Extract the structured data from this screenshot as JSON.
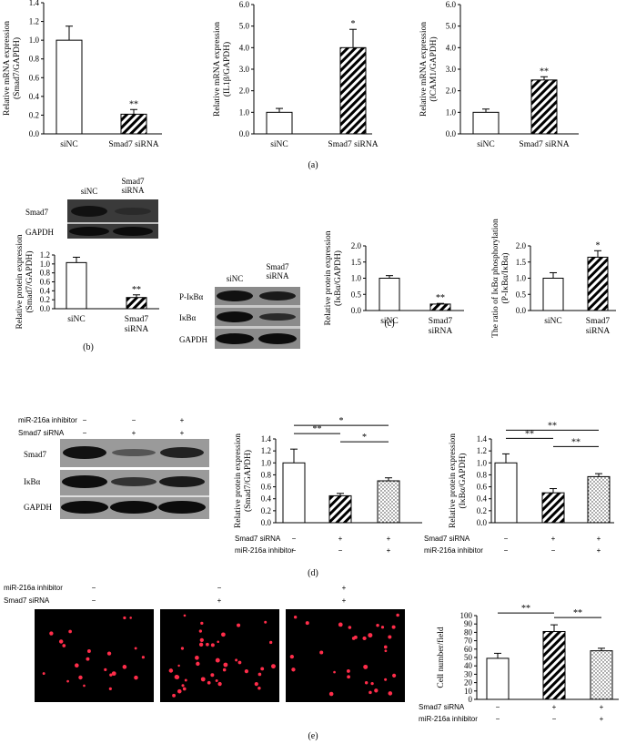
{
  "panel_labels": {
    "a": "(a)",
    "b": "(b)",
    "c": "(c)",
    "d": "(d)",
    "e": "(e)"
  },
  "blots": {
    "b": {
      "lanes": [
        "siNC",
        "Smad7 siRNA"
      ],
      "rows": [
        "Smad7",
        "GAPDH"
      ]
    },
    "c": {
      "lanes": [
        "siNC",
        "Smad7 siRNA"
      ],
      "rows": [
        "P-IκBα",
        "IκBα",
        "GAPDH"
      ]
    },
    "d": {
      "conditions": [
        {
          "label": "miR-216a inhibitor",
          "values": [
            "−",
            "−",
            "+"
          ]
        },
        {
          "label": "Smad7 siRNA",
          "values": [
            "−",
            "+",
            "+"
          ]
        }
      ],
      "rows": [
        "Smad7",
        "IκBα",
        "GAPDH"
      ]
    }
  },
  "micrographs_e": {
    "conditions": [
      {
        "label": "miR-216a inhibitor",
        "values": [
          "−",
          "−",
          "+"
        ]
      },
      {
        "label": "Smad7 siRNA",
        "values": [
          "−",
          "+",
          "+"
        ]
      }
    ]
  },
  "chart_data": [
    {
      "id": "a1",
      "type": "bar",
      "categories": [
        "siNC",
        "Smad7 siRNA"
      ],
      "values": [
        1.0,
        0.21
      ],
      "errors": [
        0.15,
        0.05
      ],
      "ylabel": "Relative mRNA expression (Smad7/GAPDH)",
      "ylim": [
        0,
        1.4
      ],
      "yticks": [
        "0.0",
        "0.2",
        "0.4",
        "0.6",
        "0.8",
        "1.0",
        "1.2",
        "1.4"
      ],
      "patterns": [
        "white",
        "hatch"
      ],
      "significance": [
        "",
        "**"
      ]
    },
    {
      "id": "a2",
      "type": "bar",
      "categories": [
        "siNC",
        "Smad7 siRNA"
      ],
      "values": [
        1.0,
        4.0
      ],
      "errors": [
        0.18,
        0.85
      ],
      "ylabel": "Relative mRNA expression (IL1β/GAPDH)",
      "ylim": [
        0,
        6.0
      ],
      "yticks": [
        "0.0",
        "1.0",
        "2.0",
        "3.0",
        "4.0",
        "5.0",
        "6.0"
      ],
      "patterns": [
        "white",
        "hatch"
      ],
      "significance": [
        "",
        "*"
      ]
    },
    {
      "id": "a3",
      "type": "bar",
      "categories": [
        "siNC",
        "Smad7 siRNA"
      ],
      "values": [
        1.0,
        2.5
      ],
      "errors": [
        0.15,
        0.15
      ],
      "ylabel": "Relative mRNA expression (ICAM1/GAPDH)",
      "ylim": [
        0,
        6.0
      ],
      "yticks": [
        "0.0",
        "1.0",
        "2.0",
        "3.0",
        "4.0",
        "5.0",
        "6.0"
      ],
      "patterns": [
        "white",
        "hatch"
      ],
      "significance": [
        "",
        "**"
      ]
    },
    {
      "id": "b",
      "type": "bar",
      "categories": [
        "siNC",
        "Smad7 siRNA"
      ],
      "values": [
        1.03,
        0.25
      ],
      "errors": [
        0.12,
        0.06
      ],
      "ylabel": "Relative protein expression (Smad7/GAPDH)",
      "ylim": [
        0,
        1.2
      ],
      "yticks": [
        "0.0",
        "0.2",
        "0.4",
        "0.6",
        "0.8",
        "1.0",
        "1.2"
      ],
      "patterns": [
        "white",
        "hatch"
      ],
      "significance": [
        "",
        "**"
      ]
    },
    {
      "id": "c1",
      "type": "bar",
      "categories": [
        "siNC",
        "Smad7 siRNA"
      ],
      "values": [
        1.0,
        0.2
      ],
      "errors": [
        0.08,
        0.02
      ],
      "ylabel": "Relative protein expression (IκBα/GAPDH)",
      "ylim": [
        0,
        2.0
      ],
      "yticks": [
        "0.0",
        "0.5",
        "1.0",
        "1.5",
        "2.0"
      ],
      "patterns": [
        "white",
        "hatch"
      ],
      "significance": [
        "",
        "**"
      ]
    },
    {
      "id": "c2",
      "type": "bar",
      "categories": [
        "siNC",
        "Smad7 siRNA"
      ],
      "values": [
        1.0,
        1.65
      ],
      "errors": [
        0.17,
        0.2
      ],
      "ylabel": "The ratio of IκBα phosphorylation (P-IκBα/IκBα)",
      "ylim": [
        0,
        2.0
      ],
      "yticks": [
        "0.0",
        "0.5",
        "1.0",
        "1.5",
        "2.0"
      ],
      "patterns": [
        "white",
        "hatch"
      ],
      "significance": [
        "",
        "*"
      ]
    },
    {
      "id": "d1",
      "type": "bar",
      "categories": [
        "",
        "",
        ""
      ],
      "values": [
        1.0,
        0.45,
        0.7
      ],
      "errors": [
        0.23,
        0.04,
        0.05
      ],
      "ylabel": "Relative protein expression (Smad7/GAPDH)",
      "ylim": [
        0,
        1.4
      ],
      "yticks": [
        "0.0",
        "0.2",
        "0.4",
        "0.6",
        "0.8",
        "1.0",
        "1.2",
        "1.4"
      ],
      "patterns": [
        "white",
        "hatch",
        "dots"
      ],
      "brackets": [
        {
          "from": 0,
          "to": 1,
          "label": "**"
        },
        {
          "from": 1,
          "to": 2,
          "label": "*"
        },
        {
          "from": 0,
          "to": 2,
          "label": "*"
        }
      ],
      "conditions": [
        {
          "label": "Smad7 siRNA",
          "values": [
            "−",
            "+",
            "+"
          ]
        },
        {
          "label": "miR-216a inhibitor",
          "values": [
            "−",
            "−",
            "+"
          ]
        }
      ]
    },
    {
      "id": "d2",
      "type": "bar",
      "categories": [
        "",
        "",
        ""
      ],
      "values": [
        1.0,
        0.5,
        0.77
      ],
      "errors": [
        0.15,
        0.07,
        0.05
      ],
      "ylabel": "Relative protein expression (IκBα/GAPDH)",
      "ylim": [
        0,
        1.4
      ],
      "yticks": [
        "0.0",
        "0.2",
        "0.4",
        "0.6",
        "0.8",
        "1.0",
        "1.2",
        "1.4"
      ],
      "patterns": [
        "white",
        "hatch",
        "dots"
      ],
      "brackets": [
        {
          "from": 0,
          "to": 1,
          "label": "**"
        },
        {
          "from": 1,
          "to": 2,
          "label": "**"
        },
        {
          "from": 0,
          "to": 2,
          "label": "**"
        }
      ],
      "conditions": [
        {
          "label": "Smad7 siRNA",
          "values": [
            "−",
            "+",
            "+"
          ]
        },
        {
          "label": "miR-216a inhibitor",
          "values": [
            "−",
            "−",
            "+"
          ]
        }
      ]
    },
    {
      "id": "e",
      "type": "bar",
      "categories": [
        "",
        "",
        ""
      ],
      "values": [
        49,
        81,
        58
      ],
      "errors": [
        6,
        8,
        3
      ],
      "ylabel": "Cell number/field",
      "ylim": [
        0,
        100
      ],
      "yticks": [
        "0",
        "10",
        "20",
        "30",
        "40",
        "50",
        "60",
        "70",
        "80",
        "90",
        "100"
      ],
      "patterns": [
        "white",
        "hatch",
        "dots"
      ],
      "brackets": [
        {
          "from": 0,
          "to": 1,
          "label": "**"
        },
        {
          "from": 1,
          "to": 2,
          "label": "**"
        }
      ],
      "conditions": [
        {
          "label": "Smad7 siRNA",
          "values": [
            "−",
            "+",
            "+"
          ]
        },
        {
          "label": "miR-216a inhibitor",
          "values": [
            "−",
            "−",
            "+"
          ]
        }
      ]
    }
  ]
}
